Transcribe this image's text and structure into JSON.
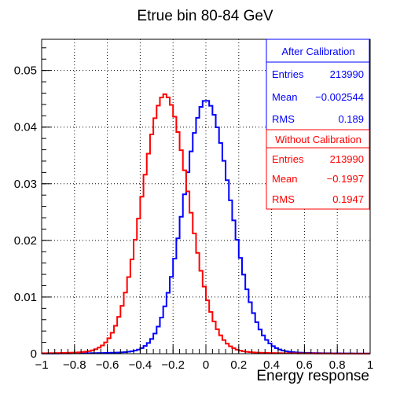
{
  "chart_data": {
    "type": "line",
    "title": "Etrue bin 80-84 GeV",
    "xlabel": "Energy response",
    "ylabel": "",
    "xlim": [
      -1,
      1
    ],
    "ylim": [
      0,
      0.0555
    ],
    "x_ticks": [
      -1,
      -0.8,
      -0.6,
      -0.4,
      -0.2,
      0,
      0.2,
      0.4,
      0.6,
      0.8,
      1
    ],
    "x_tick_labels": [
      "−1",
      "−0.8",
      "−0.6",
      "−0.4",
      "−0.2",
      "0",
      "0.2",
      "0.4",
      "0.6",
      "0.8",
      "1"
    ],
    "y_ticks": [
      0,
      0.01,
      0.02,
      0.03,
      0.04,
      0.05
    ],
    "y_tick_labels": [
      "0",
      "0.01",
      "0.02",
      "0.03",
      "0.04",
      "0.05"
    ],
    "grid": true,
    "legend_position": "top-right",
    "bin_width": 0.02,
    "series": [
      {
        "color": "#0000ff",
        "stats": {
          "header": "After Calibration",
          "rows": [
            {
              "label": "Entries",
              "value": "213990"
            },
            {
              "label": "Mean",
              "value": "−0.002544"
            },
            {
              "label": "RMS",
              "value": "0.189"
            }
          ]
        },
        "peak_x": 0.0,
        "peak_y": 0.0448
      },
      {
        "color": "#ff0000",
        "stats": {
          "header": "Without Calibration",
          "rows": [
            {
              "label": "Entries",
              "value": "213990"
            },
            {
              "label": "Mean",
              "value": "−0.1997"
            },
            {
              "label": "RMS",
              "value": "0.1947"
            }
          ]
        },
        "peak_x": -0.25,
        "peak_y": 0.0458
      }
    ]
  }
}
